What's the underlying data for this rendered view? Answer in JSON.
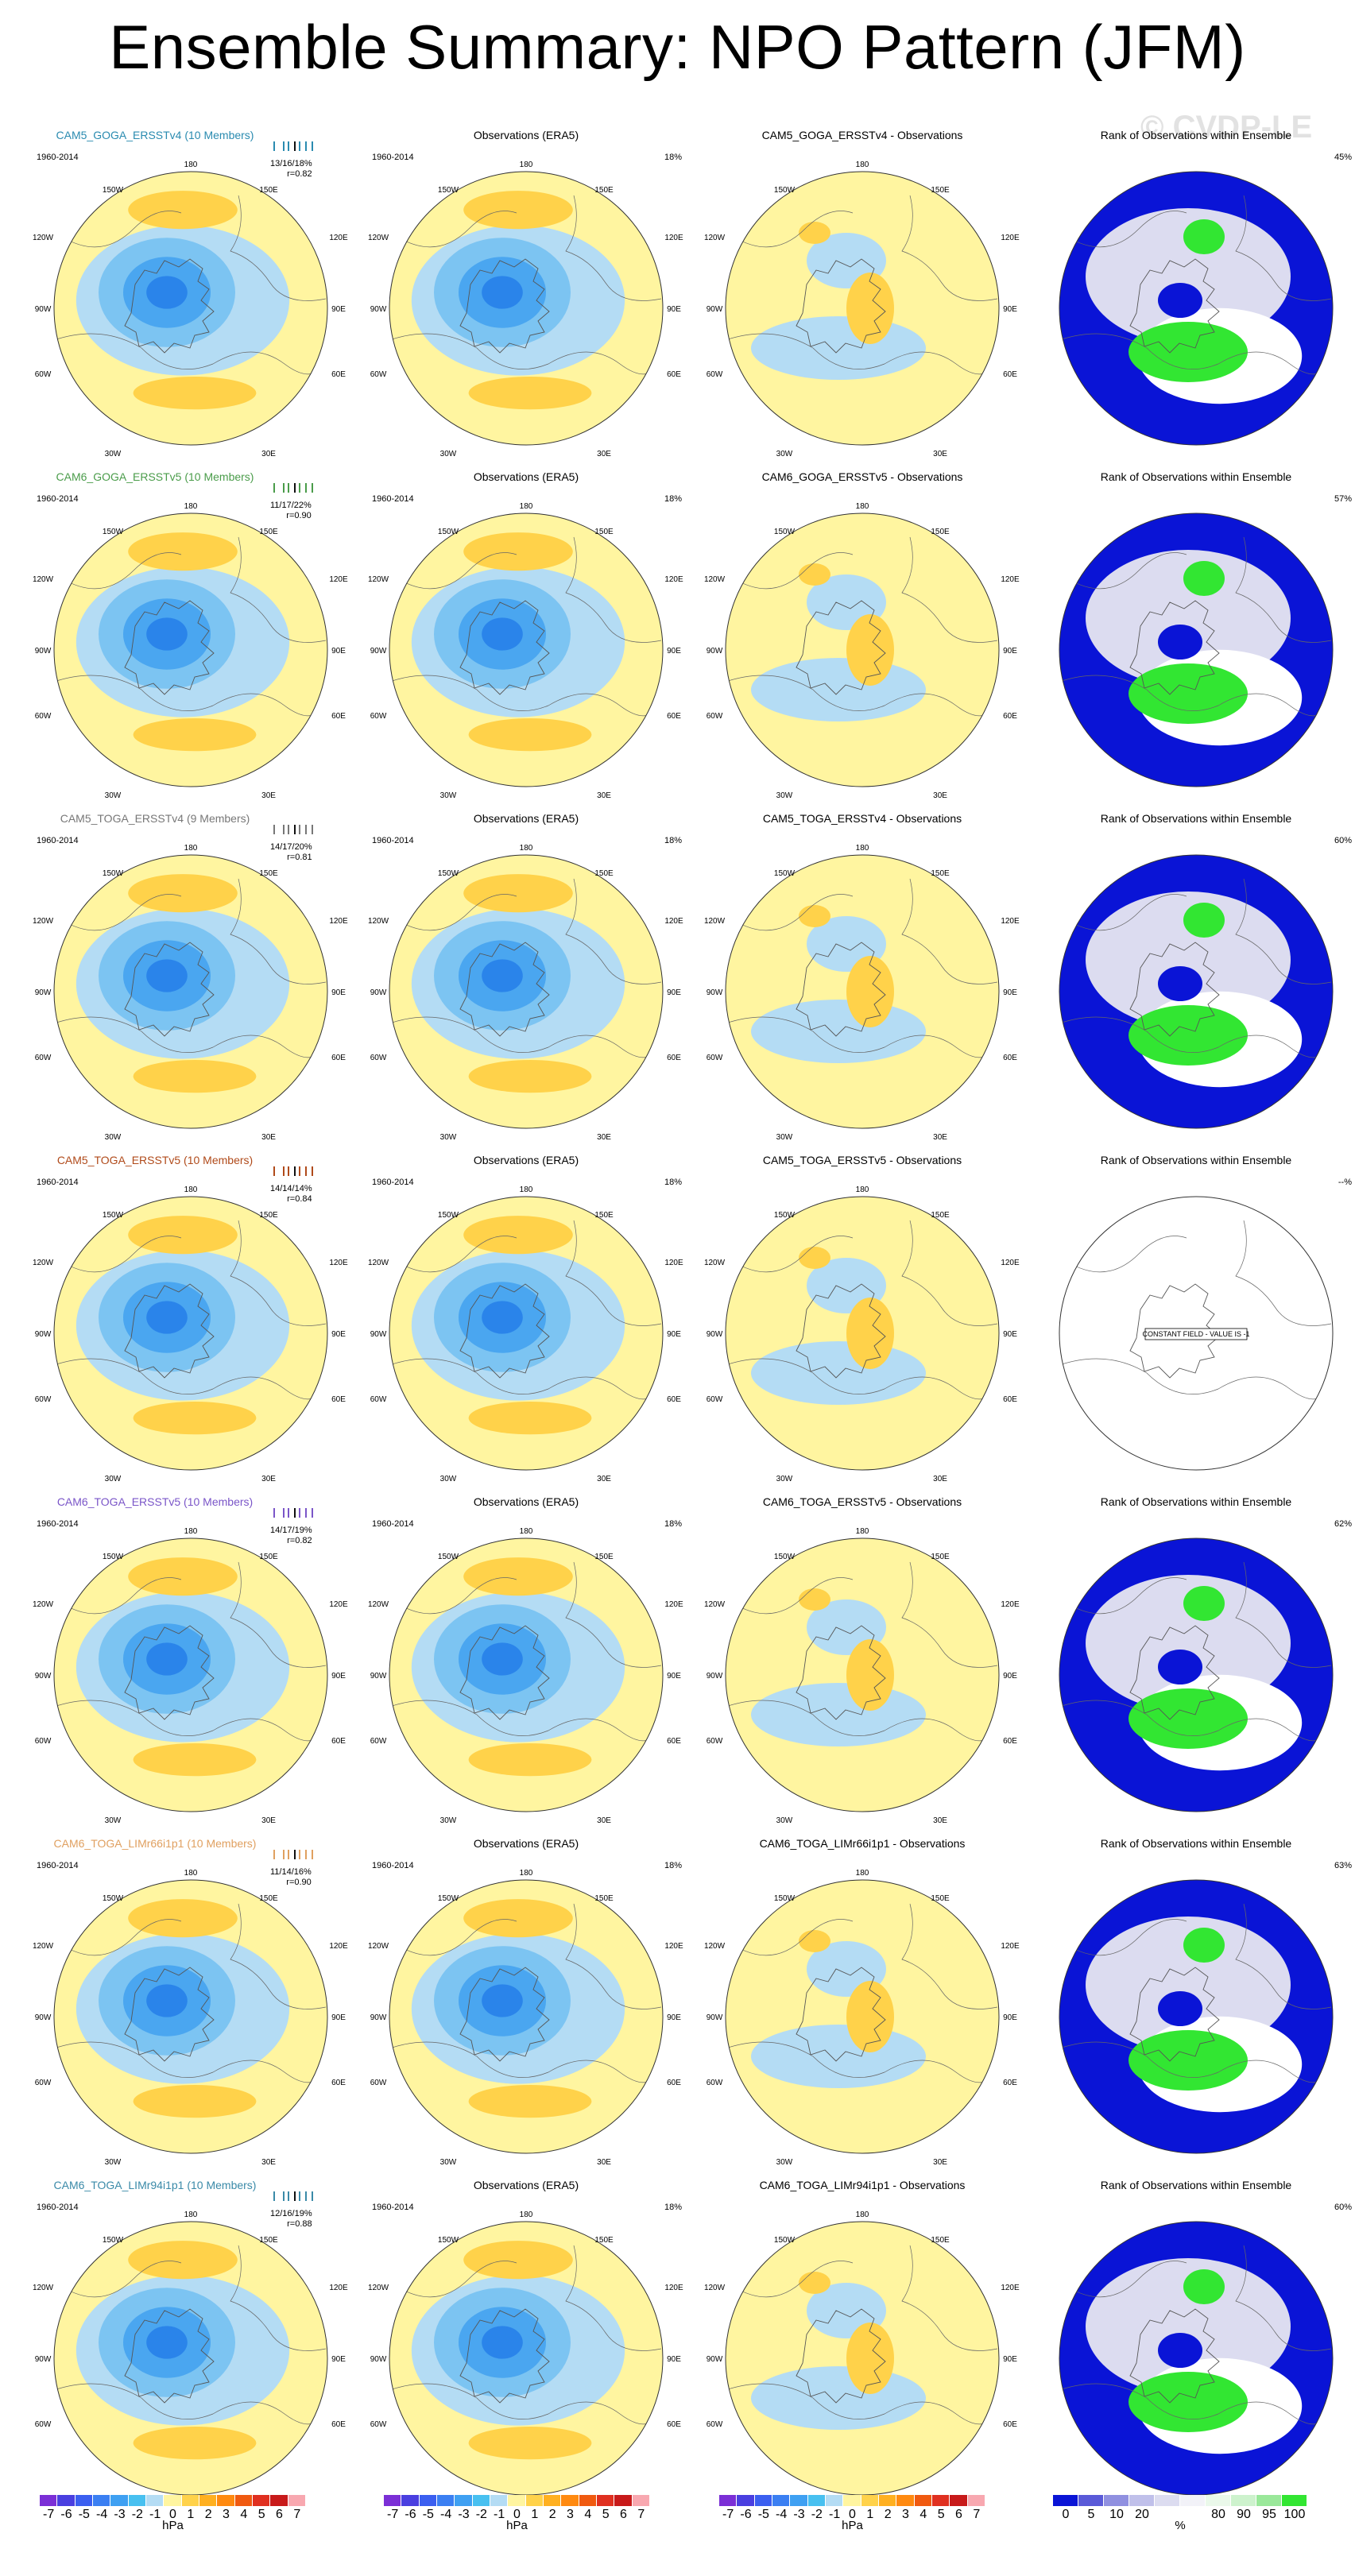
{
  "title": "Ensemble Summary: NPO Pattern (JFM)",
  "watermark": "© CVDP-LE",
  "years": "1960-2014",
  "obs_title": "Observations (ERA5)",
  "obs_pct": "18%",
  "rank_title": "Rank of Observations within Ensemble",
  "lon_labels": {
    "n": "180",
    "nw": "150W",
    "ne": "150E",
    "w1": "120W",
    "e1": "120E",
    "w2": "90W",
    "e2": "90E",
    "w3": "60W",
    "e3": "60E",
    "sw": "30W",
    "se": "30E"
  },
  "rows": [
    {
      "label": "CAM5_GOGA_ERSSTv4 (10 Members)",
      "color": "#2a8bb0",
      "stat": "13/16/18%",
      "r": "r=0.82",
      "diff": "CAM5_GOGA_ERSSTv4 - Observations",
      "rank": "45%",
      "const": ""
    },
    {
      "label": "CAM6_GOGA_ERSSTv5 (10 Members)",
      "color": "#4a9c4a",
      "stat": "11/17/22%",
      "r": "r=0.90",
      "diff": "CAM6_GOGA_ERSSTv5 - Observations",
      "rank": "57%",
      "const": ""
    },
    {
      "label": "CAM5_TOGA_ERSSTv4 (9 Members)",
      "color": "#777777",
      "stat": "14/17/20%",
      "r": "r=0.81",
      "diff": "CAM5_TOGA_ERSSTv4 - Observations",
      "rank": "60%",
      "const": ""
    },
    {
      "label": "CAM5_TOGA_ERSSTv5 (10 Members)",
      "color": "#b04a1a",
      "stat": "14/14/14%",
      "r": "r=0.84",
      "diff": "CAM5_TOGA_ERSSTv5 - Observations",
      "rank": "--%",
      "const": "CONSTANT FIELD - VALUE IS -1"
    },
    {
      "label": "CAM6_TOGA_ERSSTv5 (10 Members)",
      "color": "#7a55c8",
      "stat": "14/17/19%",
      "r": "r=0.82",
      "diff": "CAM6_TOGA_ERSSTv5 - Observations",
      "rank": "62%",
      "const": ""
    },
    {
      "label": "CAM6_TOGA_LIMr66i1p1 (10 Members)",
      "color": "#e0a060",
      "stat": "11/14/16%",
      "r": "r=0.90",
      "diff": "CAM6_TOGA_LIMr66i1p1 - Observations",
      "rank": "63%",
      "const": ""
    },
    {
      "label": "CAM6_TOGA_LIMr94i1p1 (10 Members)",
      "color": "#3a8aa8",
      "stat": "12/16/19%",
      "r": "r=0.88",
      "diff": "CAM6_TOGA_LIMr94i1p1 - Observations",
      "rank": "60%",
      "const": ""
    }
  ],
  "colorbar_hpa": {
    "colors": [
      "#7b2fd6",
      "#4a3fe0",
      "#3b5ff0",
      "#3b7ff2",
      "#3fa0f2",
      "#48c0f0",
      "#b4dcf4",
      "#fff5a0",
      "#ffd24a",
      "#ffb020",
      "#ff8a10",
      "#f05a10",
      "#e03020",
      "#c81a1a",
      "#f8a8b0"
    ],
    "ticks": [
      "-7",
      "-6",
      "-5",
      "-4",
      "-3",
      "-2",
      "-1",
      "0",
      "1",
      "2",
      "3",
      "4",
      "5",
      "6",
      "7"
    ],
    "unit": "hPa"
  },
  "colorbar_rank": {
    "colors": [
      "#0a14d6",
      "#5a5ad8",
      "#9090e0",
      "#c0c0ea",
      "#dcdcf0",
      "#f2f2f8",
      "#eaf8ea",
      "#cdf2cd",
      "#9ae89a",
      "#32e632"
    ],
    "ticks": [
      "0",
      "5",
      "10",
      "20",
      "80",
      "90",
      "95",
      "100"
    ],
    "unit": "%"
  }
}
